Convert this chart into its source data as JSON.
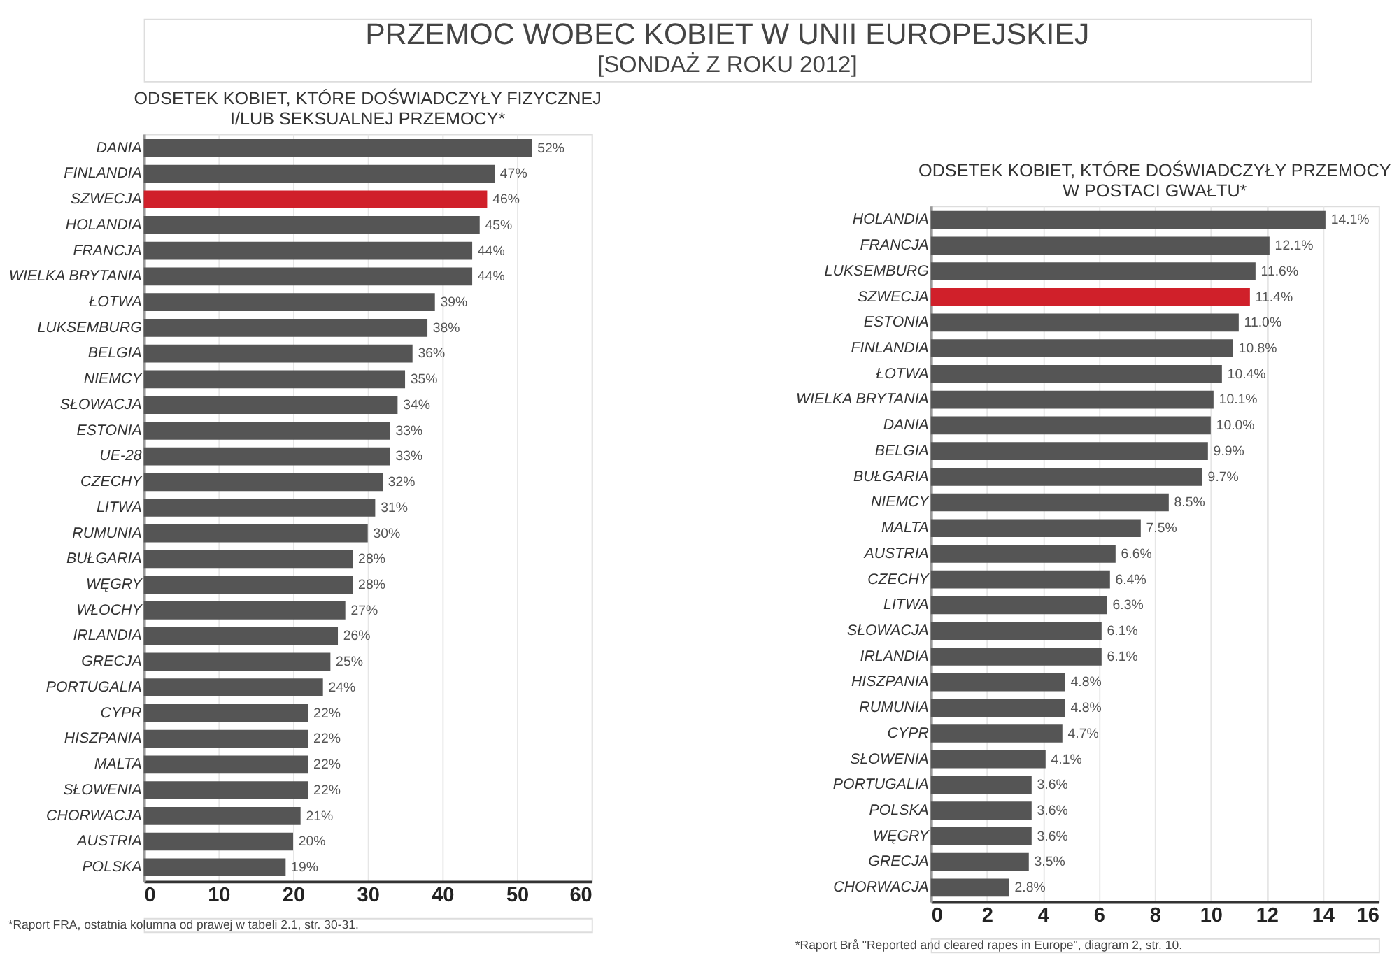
{
  "chart_data": [
    {
      "type": "bar",
      "orientation": "horizontal",
      "title": "ODSETEK KOBIET, KTÓRE DOŚWIADCZYŁY FIZYCZNEJ I/LUB SEKSUALNEJ PRZEMOCY*",
      "annotations": [
        "PRZEMOC WOBEC KOBIET W UNII EUROPEJSKIEJ",
        "[SONDAŻ Z ROKU 2012]",
        "*Raport FRA, ostatnia kolumna od prawej w tabeli 2.1, str. 30-31."
      ],
      "categories": [
        "DANIA",
        "FINLANDIA",
        "SZWECJA",
        "HOLANDIA",
        "FRANCJA",
        "WIELKA BRYTANIA",
        "ŁOTWA",
        "LUKSEMBURG",
        "BELGIA",
        "NIEMCY",
        "SŁOWACJA",
        "ESTONIA",
        "UE-28",
        "CZECHY",
        "LITWA",
        "RUMUNIA",
        "BUŁGARIA",
        "WĘGRY",
        "WŁOCHY",
        "IRLANDIA",
        "GRECJA",
        "PORTUGALIA",
        "CYPR",
        "HISZPANIA",
        "MALTA",
        "SŁOWENIA",
        "CHORWACJA",
        "AUSTRIA",
        "POLSKA"
      ],
      "values": [
        52,
        47,
        46,
        45,
        44,
        44,
        39,
        38,
        36,
        35,
        34,
        33,
        33,
        32,
        31,
        30,
        28,
        28,
        27,
        26,
        25,
        24,
        22,
        22,
        22,
        22,
        21,
        20,
        19
      ],
      "value_labels": [
        "52%",
        "47%",
        "46%",
        "45%",
        "44%",
        "44%",
        "39%",
        "38%",
        "36%",
        "35%",
        "34%",
        "33%",
        "33%",
        "32%",
        "31%",
        "30%",
        "28%",
        "28%",
        "27%",
        "26%",
        "25%",
        "24%",
        "22%",
        "22%",
        "22%",
        "22%",
        "21%",
        "20%",
        "19%"
      ],
      "colors": [
        "#555555",
        "#555555",
        "#d0202a",
        "#555555",
        "#555555",
        "#555555",
        "#555555",
        "#555555",
        "#555555",
        "#555555",
        "#555555",
        "#555555",
        "#555555",
        "#555555",
        "#555555",
        "#555555",
        "#555555",
        "#555555",
        "#555555",
        "#555555",
        "#555555",
        "#555555",
        "#555555",
        "#555555",
        "#555555",
        "#555555",
        "#555555",
        "#555555",
        "#555555"
      ],
      "xlim": [
        0,
        60
      ],
      "xticks": [
        0,
        10,
        20,
        30,
        40,
        50,
        60
      ],
      "grid": "x"
    },
    {
      "type": "bar",
      "orientation": "horizontal",
      "title": "ODSETEK KOBIET, KTÓRE DOŚWIADCZYŁY PRZEMOCY W POSTACI GWAŁTU*",
      "annotations": [
        "*Raport Brå \"Reported and cleared rapes in Europe\", diagram 2, str. 10."
      ],
      "categories": [
        "HOLANDIA",
        "FRANCJA",
        "LUKSEMBURG",
        "SZWECJA",
        "ESTONIA",
        "FINLANDIA",
        "ŁOTWA",
        "WIELKA BRYTANIA",
        "DANIA",
        "BELGIA",
        "BUŁGARIA",
        "NIEMCY",
        "MALTA",
        "AUSTRIA",
        "CZECHY",
        "LITWA",
        "SŁOWACJA",
        "IRLANDIA",
        "HISZPANIA",
        "RUMUNIA",
        "CYPR",
        "SŁOWENIA",
        "PORTUGALIA",
        "POLSKA",
        "WĘGRY",
        "GRECJA",
        "CHORWACJA"
      ],
      "values": [
        14.1,
        12.1,
        11.6,
        11.4,
        11.0,
        10.8,
        10.4,
        10.1,
        10.0,
        9.9,
        9.7,
        8.5,
        7.5,
        6.6,
        6.4,
        6.3,
        6.1,
        6.1,
        4.8,
        4.8,
        4.7,
        4.1,
        3.6,
        3.6,
        3.6,
        3.5,
        2.8
      ],
      "value_labels": [
        "14.1%",
        "12.1%",
        "11.6%",
        "11.4%",
        "11.0%",
        "10.8%",
        "10.4%",
        "10.1%",
        "10.0%",
        "9.9%",
        "9.7%",
        "8.5%",
        "7.5%",
        "6.6%",
        "6.4%",
        "6.3%",
        "6.1%",
        "6.1%",
        "4.8%",
        "4.8%",
        "4.7%",
        "4.1%",
        "3.6%",
        "3.6%",
        "3.6%",
        "3.5%",
        "2.8%"
      ],
      "colors": [
        "#555555",
        "#555555",
        "#555555",
        "#d0202a",
        "#555555",
        "#555555",
        "#555555",
        "#555555",
        "#555555",
        "#555555",
        "#555555",
        "#555555",
        "#555555",
        "#555555",
        "#555555",
        "#555555",
        "#555555",
        "#555555",
        "#555555",
        "#555555",
        "#555555",
        "#555555",
        "#555555",
        "#555555",
        "#555555",
        "#555555",
        "#555555"
      ],
      "xlim": [
        0,
        16
      ],
      "xticks": [
        0,
        2,
        4,
        6,
        8,
        10,
        12,
        14,
        16
      ],
      "grid": "x"
    }
  ]
}
